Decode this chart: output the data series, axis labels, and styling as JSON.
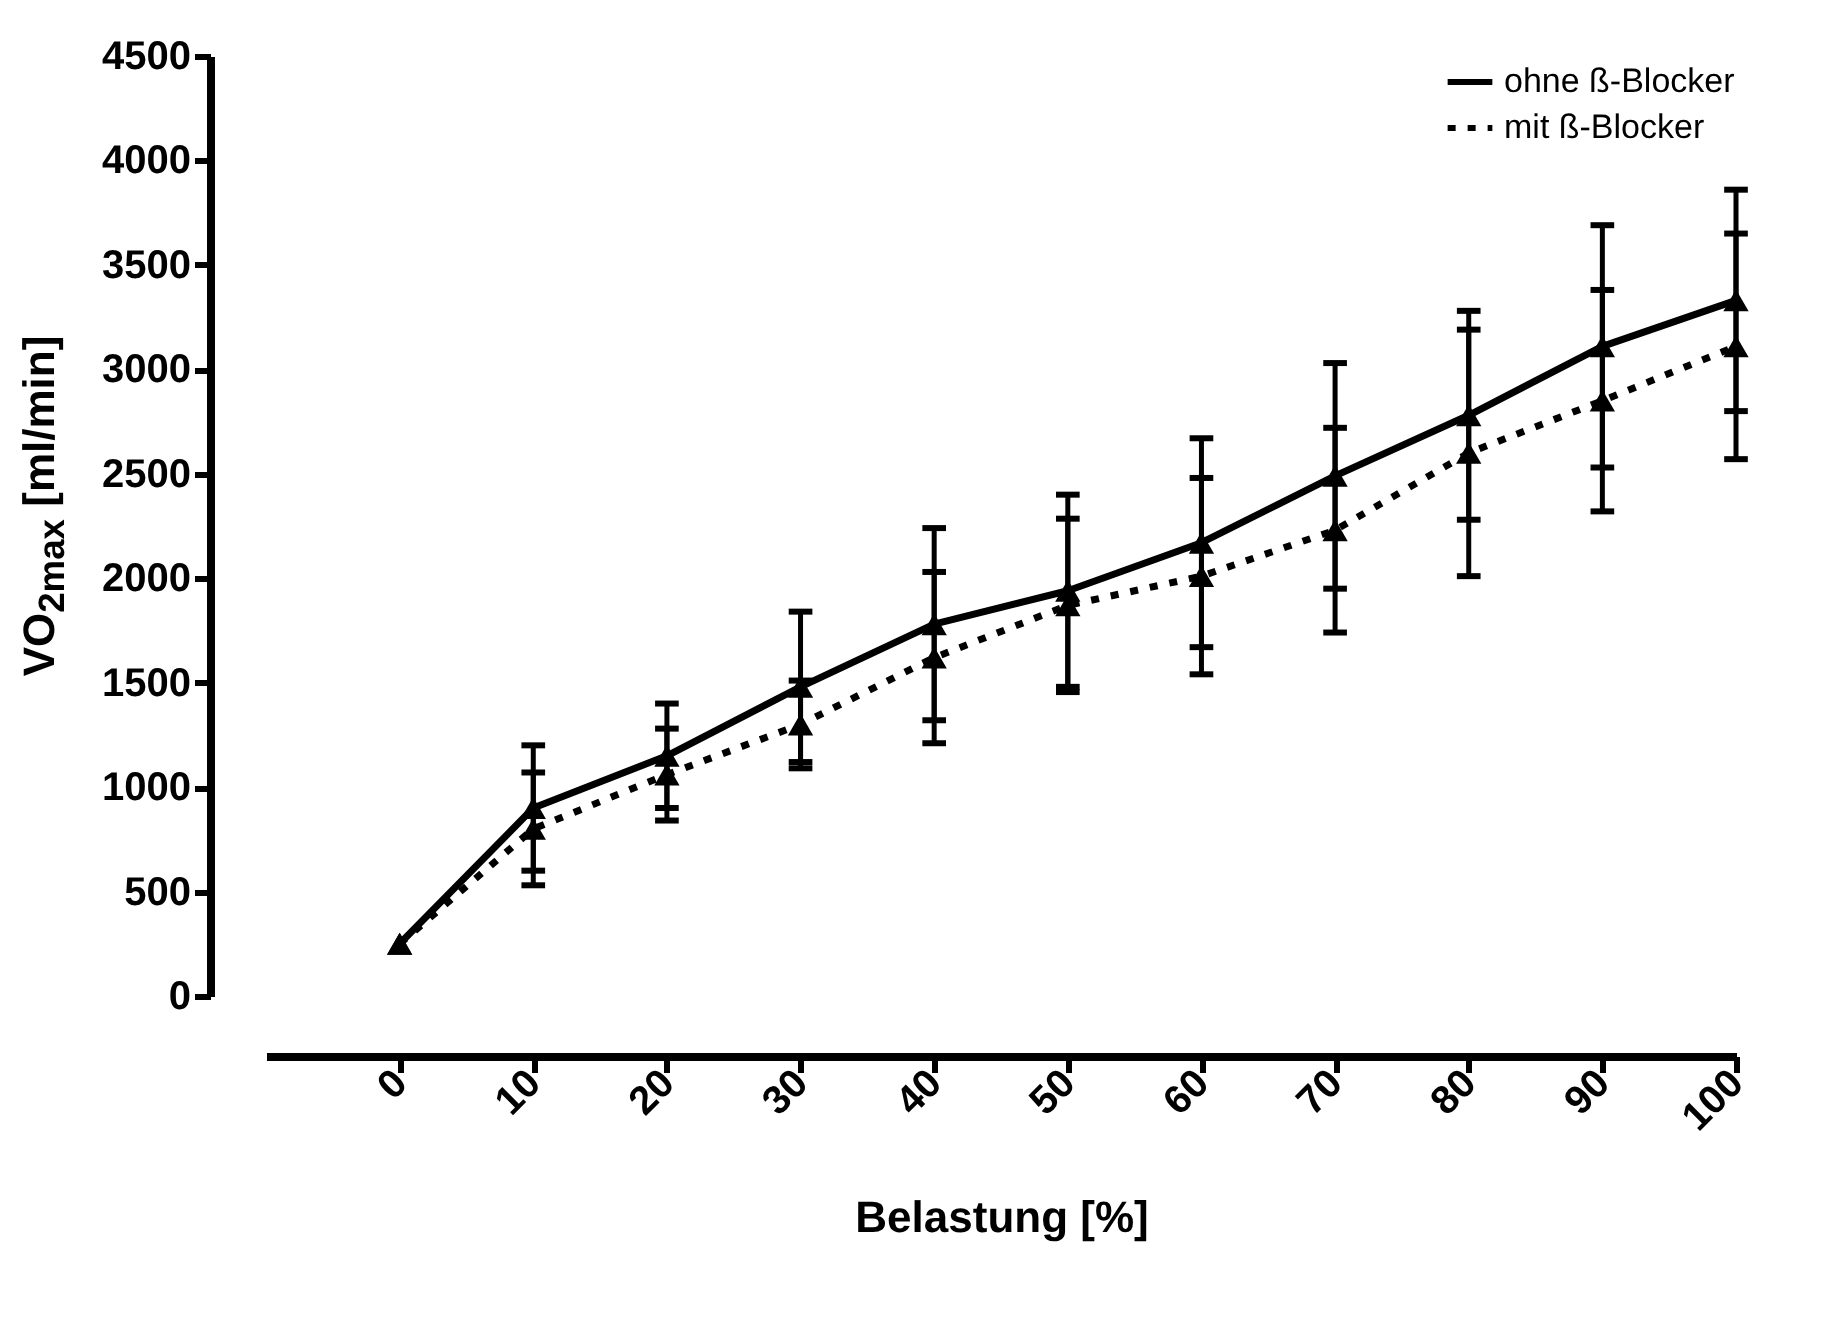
{
  "chart_data": {
    "type": "line",
    "xlabel": "Belastung [%]",
    "ylabel": "VO$_{2max}$ [ml/min]",
    "x": [
      0,
      10,
      20,
      30,
      40,
      50,
      60,
      70,
      80,
      90,
      100
    ],
    "xlim": [
      -10,
      100
    ],
    "xticks": [
      0,
      10,
      20,
      30,
      40,
      50,
      60,
      70,
      80,
      90,
      100
    ],
    "ylim": [
      0,
      4500
    ],
    "yticks": [
      0,
      500,
      1000,
      1500,
      2000,
      2500,
      3000,
      3500,
      4000,
      4500
    ],
    "grid": false,
    "legend": "top right",
    "marker": "triangle",
    "series": [
      {
        "name": "ohne ß-Blocker",
        "color": "#000000",
        "line_style": "solid",
        "values": [
          250,
          900,
          1150,
          1480,
          1780,
          1940,
          2170,
          2490,
          2780,
          3110,
          3330
        ],
        "errors": [
          null,
          300,
          250,
          360,
          460,
          460,
          500,
          540,
          500,
          580,
          530
        ]
      },
      {
        "name": "mit ß-Blocker",
        "color": "#000000",
        "line_style": "dotted",
        "values": [
          250,
          800,
          1060,
          1300,
          1620,
          1870,
          2010,
          2230,
          2600,
          2850,
          3110
        ],
        "errors": [
          null,
          270,
          220,
          210,
          410,
          415,
          470,
          490,
          590,
          530,
          540
        ]
      }
    ]
  }
}
